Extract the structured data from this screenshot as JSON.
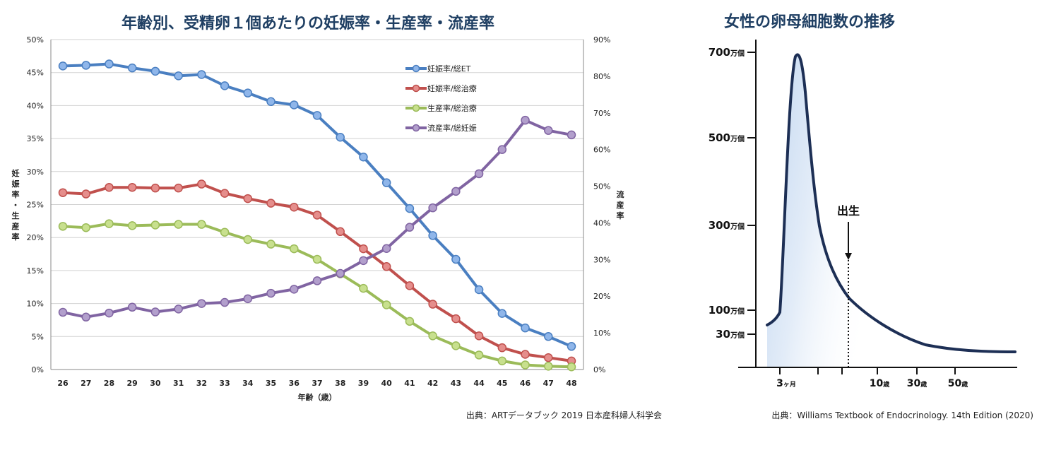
{
  "chart_data": [
    {
      "type": "line",
      "title": "年齢別、受精卵１個あたりの妊娠率・生産率・流産率",
      "xlabel": "年齢（歳）",
      "ylabel": "妊娠率・生産率",
      "y2label": "流産率",
      "categories": [
        "26",
        "27",
        "28",
        "29",
        "30",
        "31",
        "32",
        "33",
        "34",
        "35",
        "36",
        "37",
        "38",
        "39",
        "40",
        "41",
        "42",
        "43",
        "44",
        "45",
        "46",
        "47",
        "48"
      ],
      "ylim": [
        0,
        50
      ],
      "yticks": [
        "0%",
        "5%",
        "10%",
        "15%",
        "20%",
        "25%",
        "30%",
        "35%",
        "40%",
        "45%",
        "50%"
      ],
      "y2lim": [
        0,
        90
      ],
      "y2ticks": [
        "0%",
        "10%",
        "20%",
        "30%",
        "40%",
        "50%",
        "60%",
        "70%",
        "80%",
        "90%"
      ],
      "legend_position": "top-right",
      "series": [
        {
          "name": "妊娠率/総ET",
          "axis": "left",
          "color": "#4a7fc1",
          "fill": "#8fb6ea",
          "values": [
            46.0,
            46.1,
            46.3,
            45.7,
            45.2,
            44.5,
            44.7,
            43.0,
            41.9,
            40.6,
            40.1,
            38.5,
            35.2,
            32.2,
            28.3,
            24.4,
            20.3,
            16.7,
            12.1,
            8.5,
            6.3,
            5.0,
            3.5
          ]
        },
        {
          "name": "妊娠率/総治療",
          "axis": "left",
          "color": "#c0504d",
          "fill": "#e58e8c",
          "values": [
            26.8,
            26.6,
            27.6,
            27.6,
            27.5,
            27.5,
            28.1,
            26.7,
            25.9,
            25.2,
            24.6,
            23.4,
            20.9,
            18.3,
            15.6,
            12.7,
            9.9,
            7.7,
            5.1,
            3.3,
            2.3,
            1.8,
            1.3
          ]
        },
        {
          "name": "生産率/総治療",
          "axis": "left",
          "color": "#9bbb59",
          "fill": "#c8e08e",
          "values": [
            21.7,
            21.5,
            22.1,
            21.8,
            21.9,
            22.0,
            22.0,
            20.8,
            19.7,
            19.0,
            18.3,
            16.7,
            14.5,
            12.3,
            9.8,
            7.3,
            5.1,
            3.6,
            2.2,
            1.3,
            0.7,
            0.5,
            0.4
          ]
        },
        {
          "name": "流産率/総妊娠",
          "axis": "right",
          "color": "#8064a2",
          "fill": "#b29fcc",
          "values": [
            15.6,
            14.3,
            15.4,
            17.0,
            15.7,
            16.5,
            18.0,
            18.3,
            19.3,
            20.8,
            21.9,
            24.2,
            26.2,
            29.7,
            33.0,
            38.8,
            44.1,
            48.6,
            53.4,
            60.0,
            68.0,
            65.2,
            64.0
          ]
        }
      ],
      "source": "出典：ARTデータブック 2019 日本産科婦人科学会"
    },
    {
      "type": "area",
      "title": "女性の卵母細胞数の推移",
      "yticks": [
        {
          "value": 700,
          "num": "700",
          "unit": "万個"
        },
        {
          "value": 500,
          "num": "500",
          "unit": "万個"
        },
        {
          "value": 300,
          "num": "300",
          "unit": "万個"
        },
        {
          "value": 100,
          "num": "100",
          "unit": "万個"
        },
        {
          "value": 30,
          "num": "30",
          "unit": "万個"
        }
      ],
      "xticks": [
        {
          "num": "3",
          "unit": "ヶ月"
        },
        {
          "num": "10",
          "unit": "歳"
        },
        {
          "num": "30",
          "unit": "歳"
        },
        {
          "num": "50",
          "unit": "歳"
        }
      ],
      "annotation": "出生",
      "approx_curve": {
        "note": "approximate relative stage index vs 万個",
        "x": [
          0,
          0.6,
          1.0,
          1.6,
          2.0,
          2.8,
          4.0,
          6.0,
          8.0,
          12.0,
          16.0,
          20.0,
          25.0
        ],
        "y": [
          100,
          120,
          130,
          690,
          600,
          350,
          200,
          115,
          70,
          35,
          20,
          15,
          12
        ]
      },
      "source": "出典：Williams Textbook of Endocrinology. 14th Edition (2020)"
    }
  ]
}
